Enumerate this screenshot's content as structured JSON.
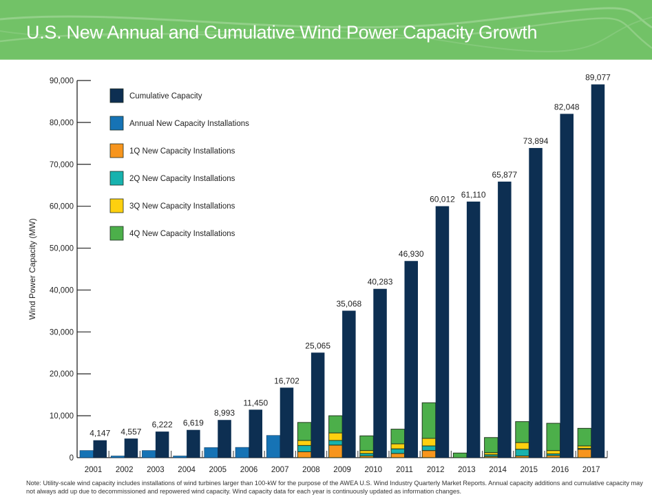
{
  "header": {
    "title": "U.S. New Annual and Cumulative Wind Power Capacity Growth",
    "background_color": "#72c267"
  },
  "note": "Note: Utility-scale wind capacity includes installations of wind turbines larger than 100-kW for the purpose of the AWEA U.S. Wind Industry Quarterly Market Reports. Annual capacity additions and cumulative capacity may not always add up due to decommissioned and repowered wind capacity. Wind capacity data for each year is continuously updated as information changes.",
  "chart_data": {
    "type": "bar",
    "title": "U.S. New Annual and Cumulative Wind Power Capacity Growth",
    "xlabel": "",
    "ylabel": "Wind Power Capacity (MW)",
    "ylim": [
      0,
      90000
    ],
    "yticks": [
      0,
      10000,
      20000,
      30000,
      40000,
      50000,
      60000,
      70000,
      80000,
      90000
    ],
    "ytick_labels": [
      "0",
      "10,000",
      "20,000",
      "30,000",
      "40,000",
      "50,000",
      "60,000",
      "70,000",
      "80,000",
      "90,000"
    ],
    "grid": false,
    "legend_position": "top-left",
    "categories": [
      "2001",
      "2002",
      "2003",
      "2004",
      "2005",
      "2006",
      "2007",
      "2008",
      "2009",
      "2010",
      "2011",
      "2012",
      "2013",
      "2014",
      "2015",
      "2016",
      "2017"
    ],
    "legend": [
      {
        "key": "cumulative",
        "label": "Cumulative Capacity",
        "color": "#0d2f52"
      },
      {
        "key": "annual",
        "label": "Annual New Capacity Installations",
        "color": "#1673b5"
      },
      {
        "key": "q1",
        "label": "1Q New Capacity Installations",
        "color": "#f7951d"
      },
      {
        "key": "q2",
        "label": "2Q New Capacity Installations",
        "color": "#17b2ae"
      },
      {
        "key": "q3",
        "label": "3Q New Capacity Installations",
        "color": "#fdd00f"
      },
      {
        "key": "q4",
        "label": "4Q New Capacity Installations",
        "color": "#4caf4a"
      }
    ],
    "series": [
      {
        "name": "Cumulative Capacity",
        "key": "cumulative",
        "values": [
          4147,
          4557,
          6222,
          6619,
          8993,
          11450,
          16702,
          25065,
          35068,
          40283,
          46930,
          60012,
          61110,
          65877,
          73894,
          82048,
          89077
        ],
        "labels": [
          "4,147",
          "4,557",
          "6,222",
          "6,619",
          "8,993",
          "11,450",
          "16,702",
          "25,065",
          "35,068",
          "40,283",
          "46,930",
          "60,012",
          "61,110",
          "65,877",
          "73,894",
          "82,048",
          "89,077"
        ]
      },
      {
        "name": "Annual New Capacity Installations",
        "key": "annual",
        "values": [
          1700,
          400,
          1700,
          400,
          2400,
          2450,
          5300,
          null,
          null,
          null,
          null,
          null,
          null,
          null,
          null,
          null,
          null
        ]
      },
      {
        "name": "1Q New Capacity Installations",
        "key": "q1",
        "values": [
          null,
          null,
          null,
          null,
          null,
          null,
          null,
          1400,
          3000,
          400,
          1000,
          1700,
          0,
          300,
          400,
          500,
          2000
        ]
      },
      {
        "name": "2Q New Capacity Installations",
        "key": "q2",
        "values": [
          null,
          null,
          null,
          null,
          null,
          null,
          null,
          1500,
          1100,
          600,
          1100,
          1100,
          0,
          400,
          1600,
          400,
          200
        ]
      },
      {
        "name": "3Q New Capacity Installations",
        "key": "q3",
        "values": [
          null,
          null,
          null,
          null,
          null,
          null,
          null,
          1200,
          1800,
          700,
          1200,
          1800,
          0,
          500,
          1600,
          800,
          600
        ]
      },
      {
        "name": "4Q New Capacity Installations",
        "key": "q4",
        "values": [
          null,
          null,
          null,
          null,
          null,
          null,
          null,
          4300,
          4100,
          3500,
          3500,
          8500,
          1100,
          3600,
          5000,
          6500,
          4200
        ]
      }
    ]
  }
}
